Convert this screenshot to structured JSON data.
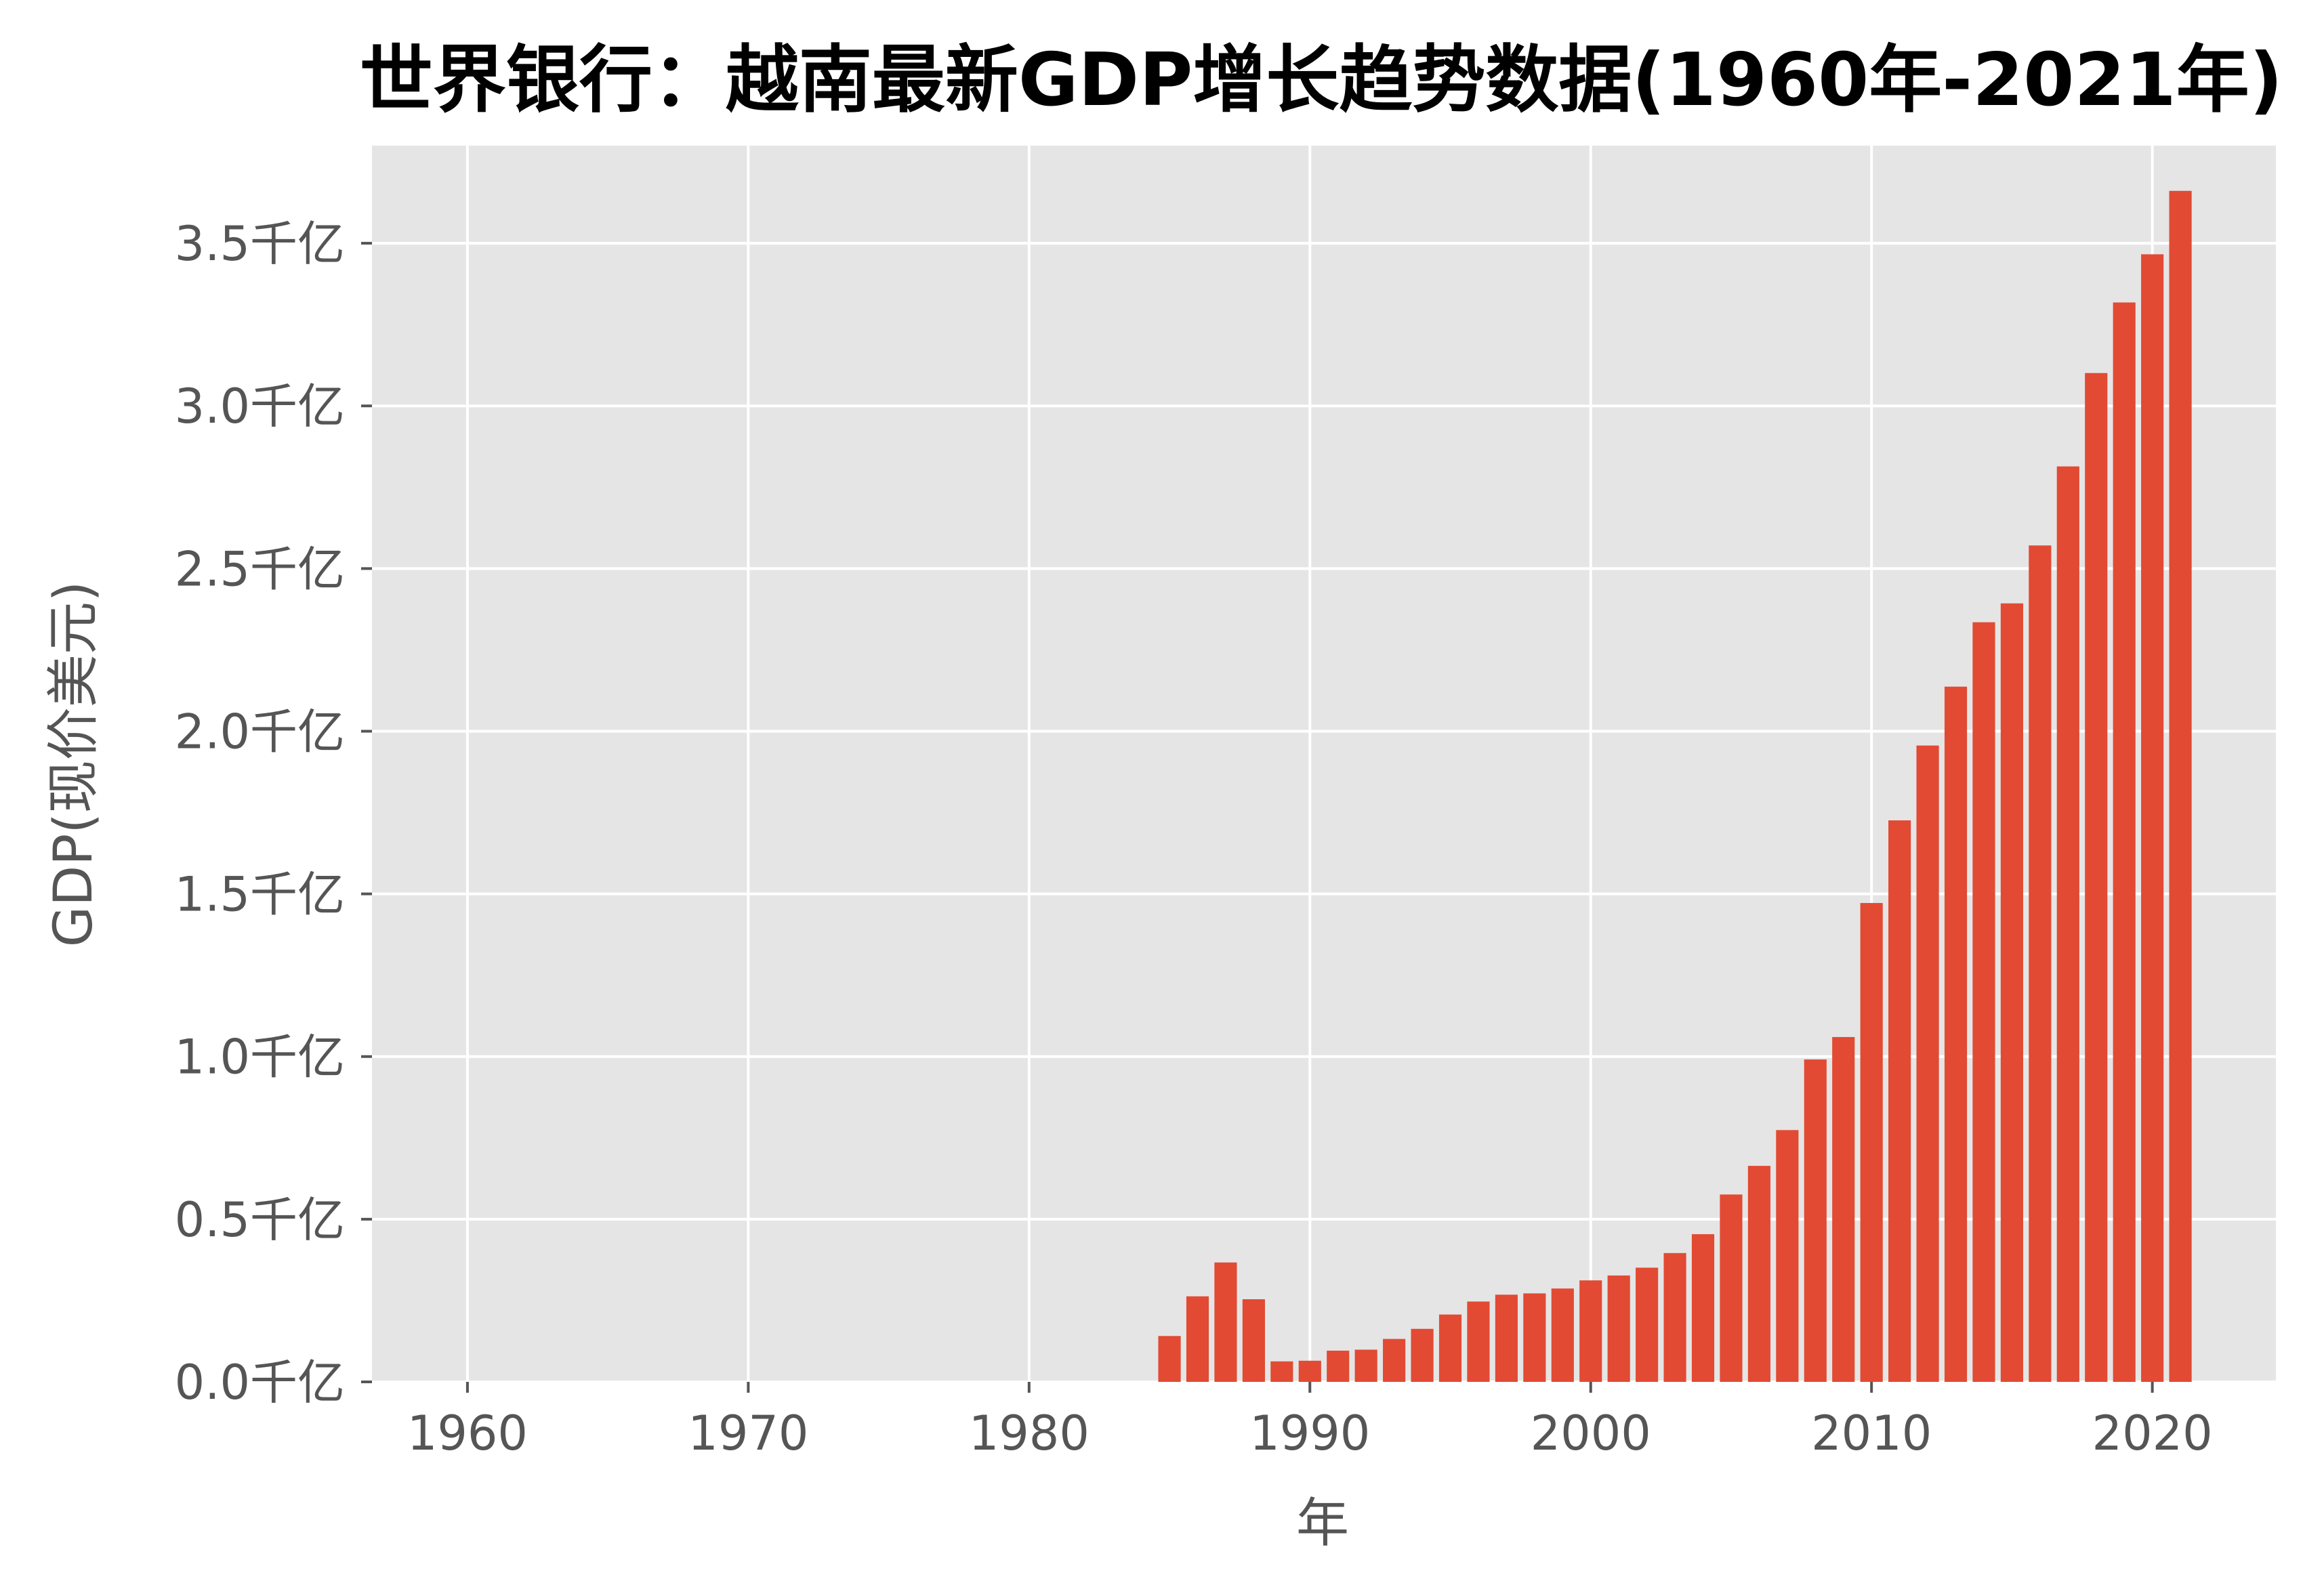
{
  "chart_data": {
    "type": "bar",
    "title": "世界银行：越南最新GDP增长趋势数据(1960年-2021年)",
    "xlabel": "年",
    "ylabel": "GDP(现价美元)",
    "xlim": [
      1956.6,
      2024.4
    ],
    "ylim": [
      0,
      3.8
    ],
    "grid": true,
    "x_ticks": [
      1960,
      1970,
      1980,
      1990,
      2000,
      2010,
      2020
    ],
    "y_ticks": [
      0.0,
      0.5,
      1.0,
      1.5,
      2.0,
      2.5,
      3.0,
      3.5
    ],
    "y_tick_labels": [
      "0.0千亿",
      "0.5千亿",
      "1.0千亿",
      "1.5千亿",
      "2.0千亿",
      "2.5千亿",
      "3.0千亿",
      "3.5千亿"
    ],
    "y_unit": "千亿",
    "x": [
      1985,
      1986,
      1987,
      1988,
      1989,
      1990,
      1991,
      1992,
      1993,
      1994,
      1995,
      1996,
      1997,
      1998,
      1999,
      2000,
      2001,
      2002,
      2003,
      2004,
      2005,
      2006,
      2007,
      2008,
      2009,
      2010,
      2011,
      2012,
      2013,
      2014,
      2015,
      2016,
      2017,
      2018,
      2019,
      2020,
      2021
    ],
    "values": [
      0.141,
      0.263,
      0.367,
      0.254,
      0.063,
      0.065,
      0.096,
      0.099,
      0.132,
      0.163,
      0.207,
      0.247,
      0.268,
      0.272,
      0.287,
      0.312,
      0.327,
      0.351,
      0.396,
      0.454,
      0.576,
      0.664,
      0.774,
      0.991,
      1.06,
      1.472,
      1.726,
      1.956,
      2.137,
      2.335,
      2.393,
      2.571,
      2.814,
      3.101,
      3.318,
      3.466,
      3.661
    ],
    "colors": {
      "bar": "#E24A33",
      "plot_background": "#E5E5E5",
      "grid": "#FFFFFF"
    }
  }
}
